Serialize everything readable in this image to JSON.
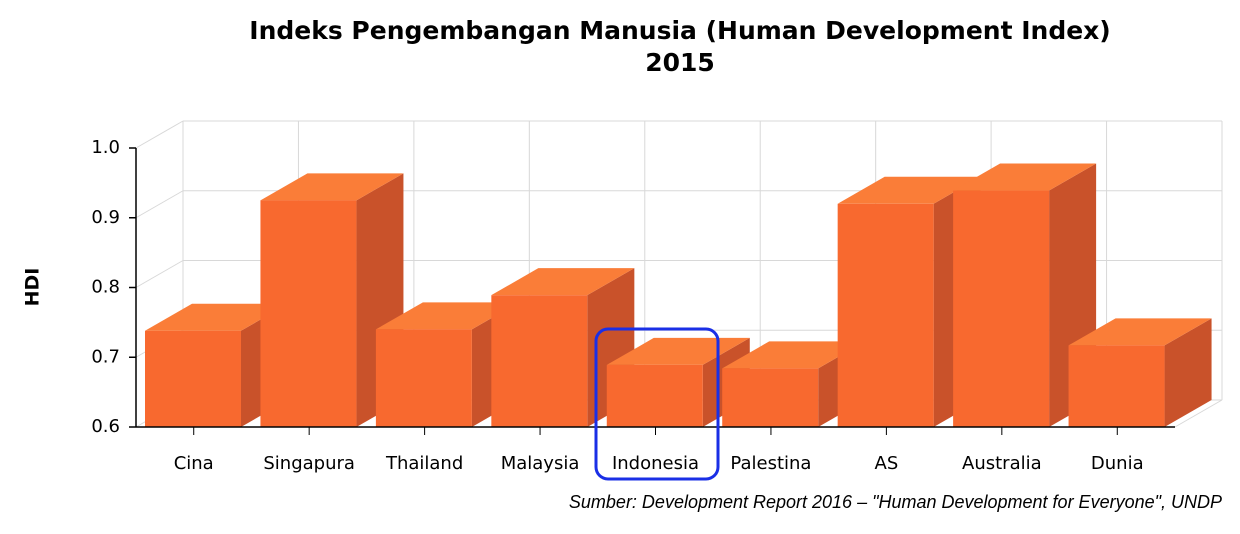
{
  "chart_data": {
    "type": "bar3d",
    "title": [
      "Indeks Pengembangan Manusia (Human Development Index)",
      "2015"
    ],
    "y_label": "HDI",
    "source": "Sumber: Development Report 2016 – \"Human Development for Everyone\", UNDP",
    "categories": [
      "Cina",
      "Singapura",
      "Thailand",
      "Malaysia",
      "Indonesia",
      "Palestina",
      "AS",
      "Australia",
      "Dunia"
    ],
    "values": [
      0.738,
      0.925,
      0.74,
      0.789,
      0.689,
      0.684,
      0.92,
      0.939,
      0.717
    ],
    "color": "#f8692f",
    "ylim": [
      0.6,
      1.0
    ],
    "yticks": [
      0.6,
      0.7,
      0.8,
      0.9,
      {
        "value": 1.0,
        "label": "1.0"
      }
    ],
    "grid": true
  }
}
